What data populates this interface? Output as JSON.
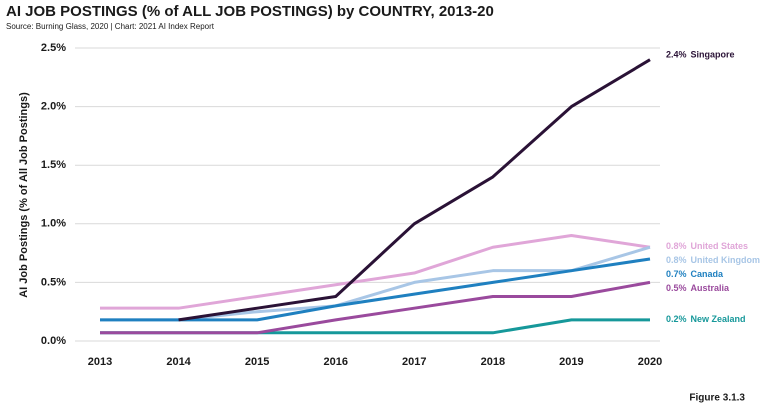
{
  "chart_data": {
    "type": "line",
    "title": "AI JOB POSTINGS (% of ALL JOB POSTINGS) by COUNTRY, 2013-20",
    "subtitle": "Source: Burning Glass, 2020 | Chart: 2021 AI Index Report",
    "y_label": "AI Job Postings (% of  All Job Postings)",
    "figure_label": "Figure 3.1.3",
    "categories": [
      "2013",
      "2014",
      "2015",
      "2016",
      "2017",
      "2018",
      "2019",
      "2020"
    ],
    "ylim": [
      0,
      2.5
    ],
    "yticks": [
      {
        "value": 0,
        "label": "0.0%"
      },
      {
        "value": 0.5,
        "label": "0.5%"
      },
      {
        "value": 1,
        "label": "1.0%"
      },
      {
        "value": 1.5,
        "label": "1.5%"
      },
      {
        "value": 2,
        "label": "2.0%"
      },
      {
        "value": 2.5,
        "label": "2.5%"
      }
    ],
    "grid": true,
    "series": [
      {
        "name": "New Zealand",
        "color": "#16989a",
        "values": [
          0.07,
          0.07,
          0.07,
          0.07,
          0.07,
          0.07,
          0.18,
          0.18
        ],
        "end_value_label": "0.2%"
      },
      {
        "name": "Australia",
        "color": "#9a4a9d",
        "values": [
          0.07,
          0.07,
          0.07,
          0.18,
          0.28,
          0.38,
          0.38,
          0.5
        ],
        "end_value_label": "0.5%"
      },
      {
        "name": "United States",
        "color": "#e0a6d8",
        "values": [
          0.28,
          0.28,
          0.38,
          0.48,
          0.58,
          0.8,
          0.9,
          0.8
        ],
        "end_value_label": "0.8%"
      },
      {
        "name": "United Kingdom",
        "color": "#a8c6e6",
        "values": [
          0.18,
          0.18,
          0.25,
          0.3,
          0.5,
          0.6,
          0.6,
          0.8
        ],
        "end_value_label": "0.8%"
      },
      {
        "name": "Canada",
        "color": "#1f80c0",
        "values": [
          0.18,
          0.18,
          0.18,
          0.3,
          0.4,
          0.5,
          0.6,
          0.7
        ],
        "end_value_label": "0.7%"
      },
      {
        "name": "Singapore",
        "color": "#2a1236",
        "values": [
          null,
          0.18,
          0.28,
          0.38,
          1.0,
          1.4,
          2.0,
          2.4
        ],
        "end_value_label": "2.4%"
      }
    ]
  }
}
